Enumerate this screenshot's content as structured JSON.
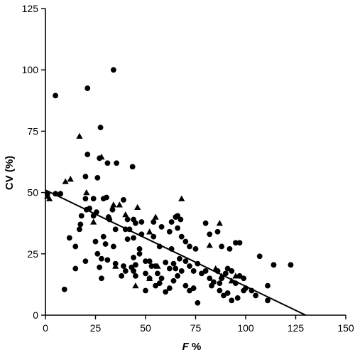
{
  "chart_data": {
    "type": "scatter",
    "xlabel": "F %",
    "xlabel_main": "F",
    "xlabel_suffix": " %",
    "ylabel": "CV (%)",
    "xlim": [
      0,
      150
    ],
    "ylim": [
      0,
      125
    ],
    "x_ticks": [
      0,
      25,
      50,
      75,
      100,
      125,
      150
    ],
    "y_ticks": [
      0,
      25,
      50,
      75,
      100,
      125
    ],
    "grid": false,
    "legend": "none",
    "colors": {
      "marks": "#000000",
      "line": "#000000",
      "background": "#ffffff"
    },
    "regression_line": {
      "x": [
        0,
        130
      ],
      "y": [
        51,
        0
      ]
    },
    "series": [
      {
        "marker": "circle",
        "points": [
          [
            5,
            89.5
          ],
          [
            34,
            100
          ],
          [
            21,
            92.5
          ],
          [
            27.5,
            76.5
          ],
          [
            27,
            64
          ],
          [
            31,
            62
          ],
          [
            35.5,
            62
          ],
          [
            43.5,
            60.5
          ],
          [
            21,
            65.5
          ],
          [
            26,
            56
          ],
          [
            20,
            56.5
          ],
          [
            5,
            49.5
          ],
          [
            1,
            49.5
          ],
          [
            7.5,
            49.5
          ],
          [
            20,
            47.5
          ],
          [
            24,
            47.5
          ],
          [
            29,
            47.5
          ],
          [
            30.5,
            48
          ],
          [
            39,
            47
          ],
          [
            22,
            43.5
          ],
          [
            20.5,
            43
          ],
          [
            25.5,
            42
          ],
          [
            33.5,
            43
          ],
          [
            18,
            40.5
          ],
          [
            24,
            40.5
          ],
          [
            31.5,
            40
          ],
          [
            32,
            39
          ],
          [
            41,
            39
          ],
          [
            44,
            39
          ],
          [
            45,
            37.5
          ],
          [
            48,
            38
          ],
          [
            40,
            35
          ],
          [
            54,
            38
          ],
          [
            58,
            36
          ],
          [
            63,
            38
          ],
          [
            65,
            40
          ],
          [
            66,
            40.5
          ],
          [
            67.5,
            39
          ],
          [
            17.5,
            37
          ],
          [
            17,
            35
          ],
          [
            35,
            35
          ],
          [
            42,
            35
          ],
          [
            48,
            33
          ],
          [
            54,
            32
          ],
          [
            62,
            34
          ],
          [
            66,
            35.5
          ],
          [
            68,
            32
          ],
          [
            80,
            37.5
          ],
          [
            86,
            34
          ],
          [
            82,
            33
          ],
          [
            44,
            31.5
          ],
          [
            41,
            31
          ],
          [
            29,
            32
          ],
          [
            25,
            30
          ],
          [
            30,
            29
          ],
          [
            47,
            27
          ],
          [
            57,
            28
          ],
          [
            63,
            27
          ],
          [
            70,
            30
          ],
          [
            72,
            28
          ],
          [
            88,
            28
          ],
          [
            92,
            27
          ],
          [
            95,
            29.5
          ],
          [
            97,
            29.5
          ],
          [
            15,
            28
          ],
          [
            12,
            31.5
          ],
          [
            20,
            22
          ],
          [
            15,
            19
          ],
          [
            9.5,
            10.5
          ],
          [
            26,
            25
          ],
          [
            28,
            23
          ],
          [
            31,
            22.5
          ],
          [
            35,
            21
          ],
          [
            39,
            20
          ],
          [
            44,
            23.5
          ],
          [
            45,
            20.5
          ],
          [
            47,
            25
          ],
          [
            43,
            19.5
          ],
          [
            50,
            22
          ],
          [
            52,
            22
          ],
          [
            53,
            20
          ],
          [
            55,
            20
          ],
          [
            56,
            17
          ],
          [
            58,
            15
          ],
          [
            60,
            21.5
          ],
          [
            62,
            19
          ],
          [
            64,
            21
          ],
          [
            65,
            19
          ],
          [
            67,
            23
          ],
          [
            68,
            18
          ],
          [
            70,
            22
          ],
          [
            72,
            20
          ],
          [
            74,
            18
          ],
          [
            75,
            27
          ],
          [
            76,
            21
          ],
          [
            78,
            17
          ],
          [
            80,
            18
          ],
          [
            82,
            15
          ],
          [
            84,
            13.5
          ],
          [
            86,
            18
          ],
          [
            87,
            13
          ],
          [
            88,
            15
          ],
          [
            90,
            17
          ],
          [
            91,
            19
          ],
          [
            93,
            18
          ],
          [
            95,
            13
          ],
          [
            97,
            16
          ],
          [
            99,
            15
          ],
          [
            100,
            11
          ],
          [
            103,
            10
          ],
          [
            107,
            24
          ],
          [
            111,
            12
          ],
          [
            114,
            20.5
          ],
          [
            122.5,
            20.5
          ],
          [
            27,
            19.5
          ],
          [
            28,
            15
          ],
          [
            38,
            16
          ],
          [
            40,
            18
          ],
          [
            45,
            16
          ],
          [
            50,
            17
          ],
          [
            52,
            15
          ],
          [
            55,
            12
          ],
          [
            57,
            13
          ],
          [
            60,
            9.5
          ],
          [
            62,
            11
          ],
          [
            64,
            14
          ],
          [
            66,
            16
          ],
          [
            70,
            12
          ],
          [
            72,
            10
          ],
          [
            74,
            11
          ],
          [
            76,
            5
          ],
          [
            83,
            12
          ],
          [
            87,
            10
          ],
          [
            89,
            8
          ],
          [
            91,
            9
          ],
          [
            93,
            6
          ],
          [
            96,
            7
          ],
          [
            99,
            10
          ],
          [
            105,
            8
          ],
          [
            111,
            6
          ],
          [
            50,
            10
          ],
          [
            44,
            18
          ],
          [
            34,
            28
          ]
        ]
      },
      {
        "marker": "triangle",
        "points": [
          [
            17,
            73
          ],
          [
            28,
            64.5
          ],
          [
            10,
            54.5
          ],
          [
            12.5,
            55.5
          ],
          [
            20.5,
            50
          ],
          [
            1,
            48.5
          ],
          [
            2,
            47.5
          ],
          [
            24,
            38
          ],
          [
            34,
            45
          ],
          [
            37,
            45
          ],
          [
            40,
            41
          ],
          [
            46,
            44
          ],
          [
            55,
            40
          ],
          [
            52,
            34
          ],
          [
            68,
            47.5
          ],
          [
            82,
            28.5
          ],
          [
            87,
            37.5
          ],
          [
            35,
            20
          ],
          [
            45,
            12
          ],
          [
            85,
            19
          ],
          [
            93,
            14
          ],
          [
            95,
            16
          ],
          [
            88,
            16
          ],
          [
            52,
            15
          ],
          [
            56,
            20
          ]
        ]
      }
    ]
  }
}
